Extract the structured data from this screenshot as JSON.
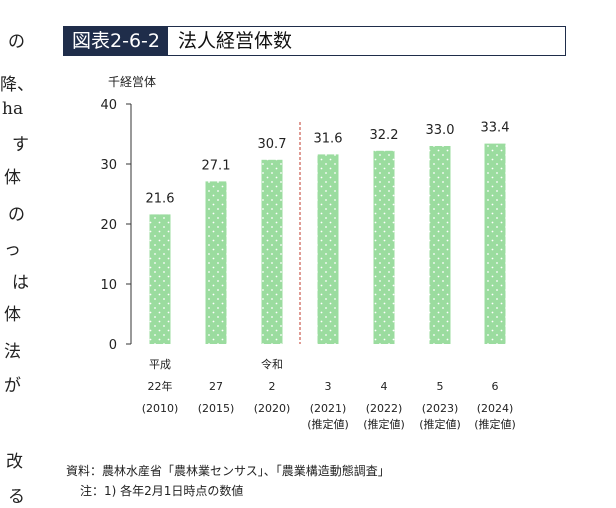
{
  "side_fragments": [
    "の",
    "降、",
    "ha",
    "す",
    "体",
    "の",
    "っ",
    "は",
    "体",
    "法",
    "が",
    "改",
    "る"
  ],
  "figure": {
    "label": "図表2-6-2",
    "title": "法人経営体数"
  },
  "chart_data": {
    "type": "bar",
    "title": "法人経営体数",
    "ylabel": "千経営体",
    "ylim": [
      0,
      40
    ],
    "yticks": [
      0,
      10,
      20,
      30,
      40
    ],
    "categories": [
      [
        "平成",
        "22年",
        "(2010)"
      ],
      [
        "",
        "27",
        "(2015)"
      ],
      [
        "令和",
        "2",
        "(2020)"
      ],
      [
        "",
        "3",
        "(2021)",
        "(推定値)"
      ],
      [
        "",
        "4",
        "(2022)",
        "(推定値)"
      ],
      [
        "",
        "5",
        "(2023)",
        "(推定値)"
      ],
      [
        "",
        "6",
        "(2024)",
        "(推定値)"
      ]
    ],
    "values": [
      21.6,
      27.1,
      30.7,
      31.6,
      32.2,
      33.0,
      33.4
    ],
    "value_labels": [
      "21.6",
      "27.1",
      "30.7",
      "31.6",
      "32.2",
      "33.0",
      "33.4"
    ],
    "bar_color": "#9bdc9f",
    "dot_color": "#ffffff",
    "divider_color": "#c0392b",
    "divider_after_index": 2,
    "grid": false,
    "legend": "none"
  },
  "notes": {
    "source": "資料：農林水産省「農林業センサス」、「農業構造動態調査」",
    "note": "注：1) 各年2月1日時点の数値"
  }
}
